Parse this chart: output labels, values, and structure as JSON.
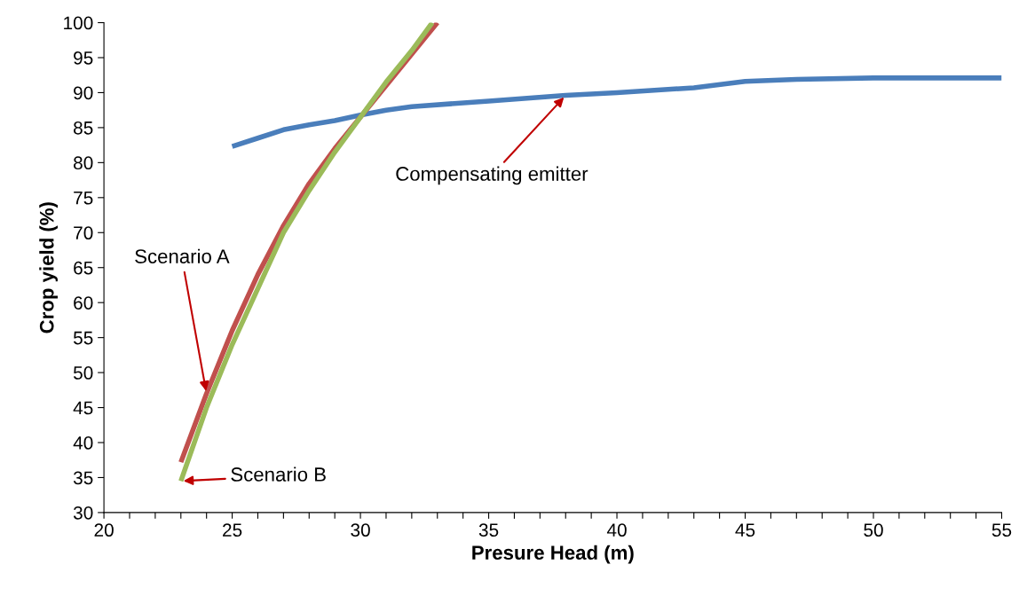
{
  "chart_data": {
    "type": "line",
    "xlabel": "Presure Head (m)",
    "ylabel": "Crop yield (%)",
    "xlim": [
      20,
      55
    ],
    "ylim": [
      30,
      100
    ],
    "xticks": [
      20,
      {
        "value": 21,
        "label": null
      },
      {
        "value": 22,
        "label": null
      },
      {
        "value": 23,
        "label": null
      },
      {
        "value": 24,
        "label": null
      },
      25,
      {
        "value": 26,
        "label": null
      },
      {
        "value": 27,
        "label": null
      },
      {
        "value": 28,
        "label": null
      },
      {
        "value": 29,
        "label": null
      },
      30,
      {
        "value": 31,
        "label": null
      },
      {
        "value": 32,
        "label": null
      },
      {
        "value": 33,
        "label": null
      },
      {
        "value": 34,
        "label": null
      },
      35,
      {
        "value": 36,
        "label": null
      },
      {
        "value": 37,
        "label": null
      },
      {
        "value": 38,
        "label": null
      },
      {
        "value": 39,
        "label": null
      },
      40,
      {
        "value": 41,
        "label": null
      },
      {
        "value": 42,
        "label": null
      },
      {
        "value": 43,
        "label": null
      },
      {
        "value": 44,
        "label": null
      },
      45,
      {
        "value": 46,
        "label": null
      },
      {
        "value": 47,
        "label": null
      },
      {
        "value": 48,
        "label": null
      },
      {
        "value": 49,
        "label": null
      },
      50,
      {
        "value": 51,
        "label": null
      },
      {
        "value": 52,
        "label": null
      },
      {
        "value": 53,
        "label": null
      },
      {
        "value": 54,
        "label": null
      },
      55
    ],
    "yticks": [
      30,
      35,
      40,
      45,
      50,
      55,
      60,
      65,
      70,
      75,
      80,
      85,
      90,
      95,
      100
    ],
    "grid": false,
    "legend": false,
    "marker": "none",
    "line_style": "solid",
    "series": [
      {
        "name": "Compensating emitter",
        "color": "#4a7ebb",
        "x": [
          25,
          26,
          27,
          28,
          29,
          30,
          31,
          32,
          35,
          38,
          40,
          43,
          45,
          47,
          50,
          55
        ],
        "values": [
          82.3,
          83.5,
          84.7,
          85.4,
          86,
          86.8,
          87.5,
          88,
          88.8,
          89.6,
          90,
          90.7,
          91.6,
          91.9,
          92.1,
          92.1
        ]
      },
      {
        "name": "Scenario A",
        "color": "#c0504d",
        "x": [
          23,
          24,
          25,
          26,
          27,
          28,
          29,
          30,
          31,
          32,
          33
        ],
        "values": [
          37.2,
          47,
          56,
          64,
          71,
          77,
          82,
          86.5,
          91,
          95.5,
          100
        ]
      },
      {
        "name": "Scenario B",
        "color": "#9bbb59",
        "x": [
          23,
          24,
          25,
          26,
          27,
          28,
          29,
          30,
          31,
          32,
          32.8
        ],
        "values": [
          34.5,
          45,
          54,
          62,
          70,
          76,
          81.5,
          86.5,
          91.5,
          96,
          100
        ]
      }
    ]
  }
}
